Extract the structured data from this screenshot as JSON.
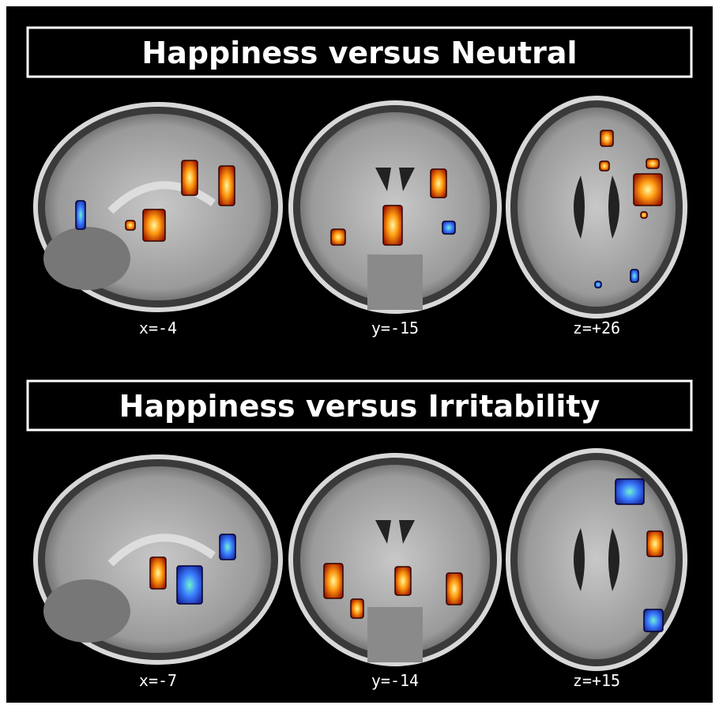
{
  "panels": [
    {
      "title": "Happiness versus Neutral",
      "slices": [
        {
          "label": "x=-4"
        },
        {
          "label": "y=-15"
        },
        {
          "label": "z=+26"
        }
      ]
    },
    {
      "title": "Happiness versus Irritability",
      "slices": [
        {
          "label": "x=-7"
        },
        {
          "label": "y=-14"
        },
        {
          "label": "z=+15"
        }
      ]
    }
  ]
}
